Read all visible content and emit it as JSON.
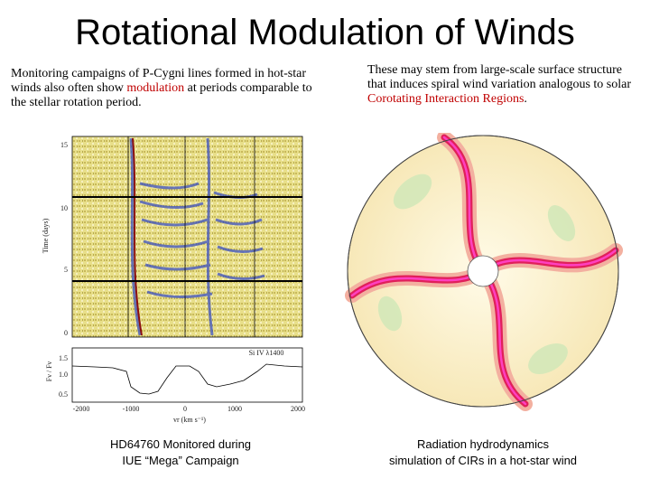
{
  "title": "Rotational Modulation of Winds",
  "left_text": [
    {
      "text": "Monitoring campaigns of P-Cygni lines formed in hot-star winds also often show "
    },
    {
      "text": "modulation",
      "color": "#c00000"
    },
    {
      "text": " at periods comparable to the stellar rotation period."
    }
  ],
  "right_text": [
    {
      "text": "These may stem from large-scale surface structure that  induces spiral wind variation analogous to solar "
    },
    {
      "text": "Corotating Interaction Regions",
      "color": "#c00000"
    },
    {
      "text": "."
    }
  ],
  "figure_left": {
    "y_label": "Time (days)",
    "y_ticks": [
      "15",
      "10",
      "5",
      "0"
    ],
    "line_label": "Si IV λ1400",
    "flux_label": "Fν / Fν",
    "flux_ticks": [
      "1.5",
      "1.0",
      "0.5"
    ],
    "x_ticks": [
      "-2000",
      "-1000",
      "0",
      "1000",
      "2000"
    ],
    "x_label": "vr (km s⁻¹)"
  },
  "caption_left": [
    "HD64760 Monitored during",
    "IUE “Mega” Campaign"
  ],
  "caption_right": [
    "Radiation hydrodynamics",
    "simulation of CIRs in a hot-star wind"
  ]
}
